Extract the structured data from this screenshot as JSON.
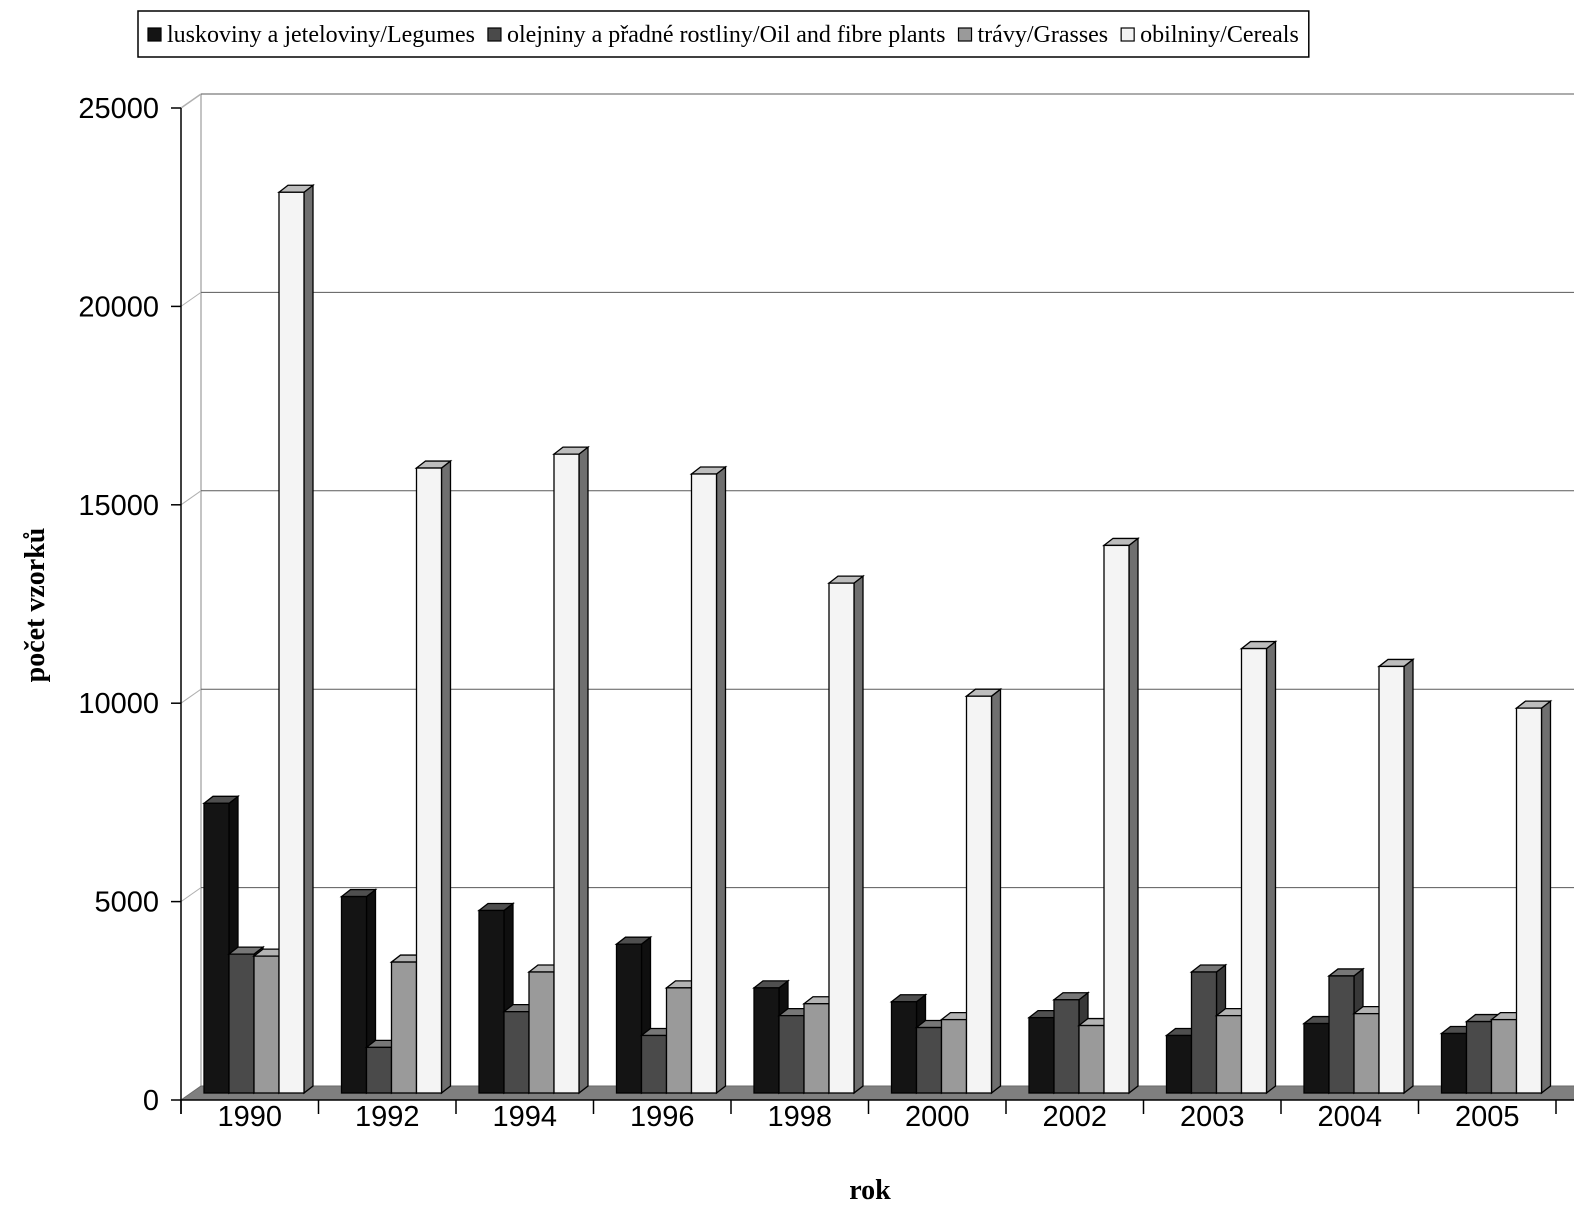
{
  "chart_data": {
    "type": "bar",
    "style": "3d-clustered-column",
    "categories": [
      "1990",
      "1992",
      "1994",
      "1996",
      "1998",
      "2000",
      "2002",
      "2003",
      "2004",
      "2005"
    ],
    "series": [
      {
        "name": "luskoviny a jeteloviny/Legumes",
        "color": "#141414",
        "values": [
          7300,
          4950,
          4600,
          3750,
          2650,
          2300,
          1900,
          1450,
          1750,
          1500
        ]
      },
      {
        "name": "olejniny a přadné rostliny/Oil and fibre plants",
        "color": "#4a4a4a",
        "values": [
          3500,
          1150,
          2050,
          1450,
          1950,
          1650,
          2350,
          3050,
          2950,
          1800
        ]
      },
      {
        "name": "trávy/Grasses",
        "color": "#9a9a9a",
        "values": [
          3450,
          3300,
          3050,
          2650,
          2250,
          1850,
          1700,
          1950,
          2000,
          1850
        ]
      },
      {
        "name": "obilniny/Cereals",
        "color": "#f4f4f4",
        "values": [
          22700,
          15750,
          16100,
          15600,
          12850,
          10000,
          13800,
          11200,
          10750,
          9700
        ]
      }
    ],
    "xlabel": "rok",
    "ylabel": "počet vzorků",
    "ylim": [
      0,
      25000
    ],
    "yticks": [
      "0",
      "5000",
      "10000",
      "15000",
      "20000",
      "25000"
    ],
    "grid": true,
    "legend": "top"
  }
}
